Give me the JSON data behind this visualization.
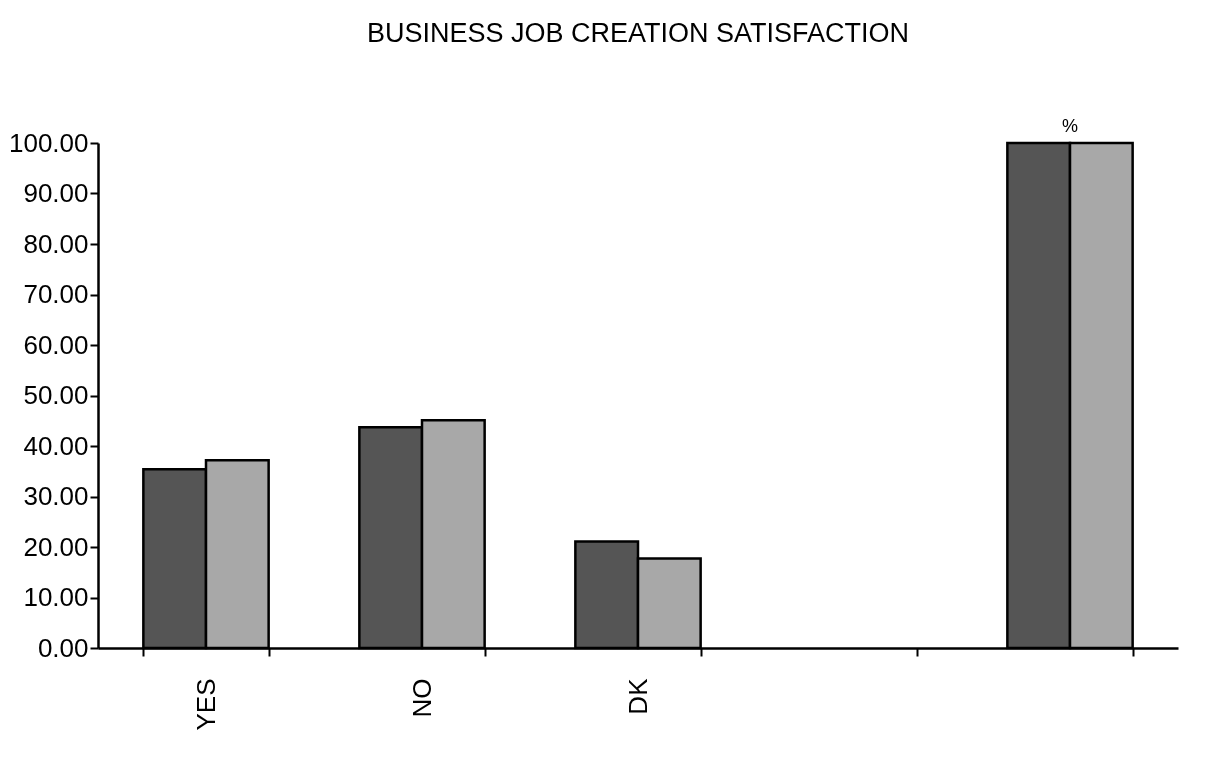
{
  "chart_data": {
    "type": "bar",
    "title": "BUSINESS JOB CREATION SATISFACTION",
    "categories": [
      "YES",
      "NO",
      "DK",
      null,
      null
    ],
    "series": [
      {
        "color": "#555555",
        "values": [
          35.4,
          43.7,
          21.1,
          null,
          100
        ]
      },
      {
        "color": "#a8a8a8",
        "values": [
          37.2,
          45.1,
          17.7,
          null,
          100
        ]
      }
    ],
    "ylim": [
      0,
      100
    ],
    "yticks": [
      {
        "value": 0,
        "label": "0.00"
      },
      {
        "value": 10,
        "label": "10.00"
      },
      {
        "value": 20,
        "label": "20.00"
      },
      {
        "value": 30,
        "label": "30.00"
      },
      {
        "value": 40,
        "label": "40.00"
      },
      {
        "value": 50,
        "label": "50.00"
      },
      {
        "value": 60,
        "label": "60.00"
      },
      {
        "value": 70,
        "label": "70.00"
      },
      {
        "value": 80,
        "label": "80.00"
      },
      {
        "value": 90,
        "label": "90.00"
      },
      {
        "value": 100,
        "label": "100.00"
      }
    ],
    "annotations": [
      {
        "text": "%",
        "y": 100
      }
    ],
    "grid": false,
    "legend": false
  }
}
